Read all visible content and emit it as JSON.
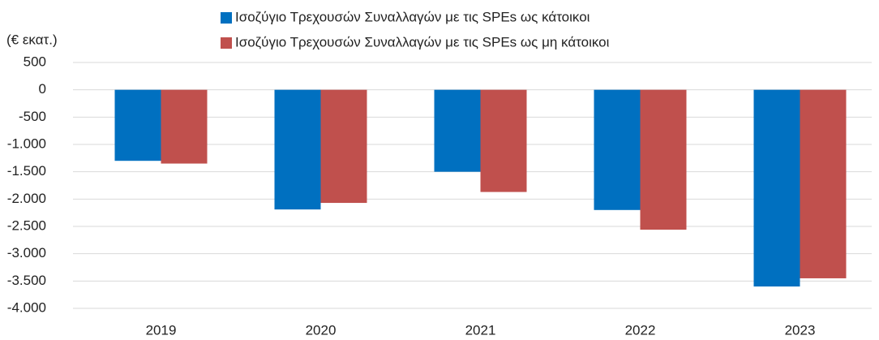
{
  "chart_data": {
    "type": "bar",
    "y_label": "(€ εκατ.)",
    "categories": [
      "2019",
      "2020",
      "2021",
      "2022",
      "2023"
    ],
    "series": [
      {
        "name": "Ισοζύγιο Τρεχουσών Συναλλαγών με τις SPEs ως κάτοικοι",
        "color": "#0070c0",
        "values": [
          -1300,
          -2190,
          -1500,
          -2200,
          -3600
        ]
      },
      {
        "name": "Ισοζύγιο Τρεχουσών Συναλλαγών με τις SPEs ως μη κάτοικοι",
        "color": "#c0504d",
        "values": [
          -1350,
          -2070,
          -1870,
          -2560,
          -3450
        ]
      }
    ],
    "ylim": [
      -4000,
      500
    ],
    "yticks": [
      500,
      0,
      -500,
      {
        "value": -1000,
        "label": "-1.000"
      },
      {
        "value": -1500,
        "label": "-1.500"
      },
      {
        "value": -2000,
        "label": "-2.000"
      },
      {
        "value": -2500,
        "label": "-2.500"
      },
      {
        "value": -3000,
        "label": "-3.000"
      },
      {
        "value": -3500,
        "label": "-3.500"
      },
      {
        "value": -4000,
        "label": "-4.000"
      }
    ],
    "grid": true
  }
}
